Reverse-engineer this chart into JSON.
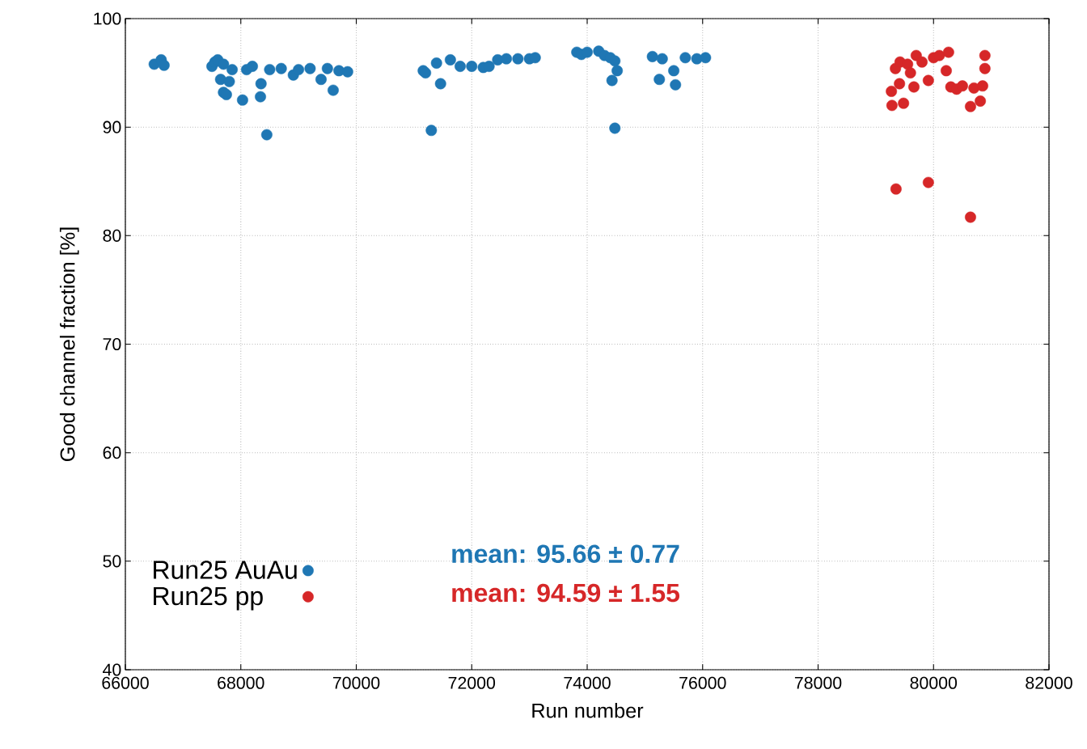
{
  "chart_data": {
    "type": "scatter",
    "xlabel": "Run number",
    "ylabel": "Good channel fraction [%]",
    "xlim": [
      66000,
      82000
    ],
    "xticks": [
      66000,
      68000,
      70000,
      72000,
      74000,
      76000,
      78000,
      80000,
      82000
    ],
    "ylim": [
      40,
      100
    ],
    "yticks": [
      40,
      50,
      60,
      70,
      80,
      90,
      100
    ],
    "grid": true,
    "legend": "bottom left",
    "marker": "circle",
    "annotations": [
      "mean: 95.66 ± 0.77",
      "mean: 94.59 ± 1.55"
    ],
    "series": [
      {
        "name": "Run25 AuAu",
        "color": "#1f77b4",
        "x": [
          66500,
          66620,
          66670,
          67500,
          67550,
          67600,
          67650,
          67700,
          67700,
          67750,
          67800,
          67850,
          68030,
          68100,
          68340,
          68350,
          68450,
          68200,
          68500,
          68700,
          68910,
          69000,
          69200,
          69390,
          69500,
          69600,
          69700,
          69850,
          71160,
          71200,
          71300,
          71390,
          71460,
          71630,
          71800,
          72000,
          72200,
          72300,
          72450,
          72600,
          72800,
          73000,
          73100,
          73820,
          73900,
          74000,
          74200,
          74300,
          74400,
          74480,
          74520,
          74430,
          74480,
          75130,
          75250,
          75300,
          75500,
          75530,
          75700,
          75900,
          76050
        ],
        "values": [
          95.8,
          96.2,
          95.7,
          95.6,
          96.0,
          96.2,
          94.4,
          95.8,
          93.2,
          93.0,
          94.2,
          95.3,
          92.5,
          95.3,
          92.8,
          94.0,
          89.3,
          95.6,
          95.3,
          95.4,
          94.8,
          95.3,
          95.4,
          94.4,
          95.4,
          93.4,
          95.2,
          95.1,
          95.2,
          95.0,
          89.7,
          95.9,
          94.0,
          96.2,
          95.6,
          95.6,
          95.5,
          95.6,
          96.2,
          96.3,
          96.3,
          96.3,
          96.4,
          96.9,
          96.7,
          96.9,
          97.0,
          96.6,
          96.4,
          96.1,
          95.2,
          94.3,
          89.9,
          96.5,
          94.4,
          96.3,
          95.2,
          93.9,
          96.4,
          96.3,
          96.4
        ]
      },
      {
        "name": "Run25 pp",
        "color": "#d62728",
        "x": [
          79270,
          79280,
          79340,
          79350,
          79410,
          79420,
          79480,
          79550,
          79600,
          79660,
          79700,
          79800,
          79910,
          79910,
          80000,
          80100,
          80220,
          80260,
          80300,
          80400,
          80500,
          80640,
          80640,
          80700,
          80810,
          80850,
          80890,
          80890
        ],
        "values": [
          93.3,
          92.0,
          95.4,
          84.3,
          94.0,
          96.0,
          92.2,
          95.8,
          95.0,
          93.7,
          96.6,
          96.0,
          94.3,
          84.9,
          96.4,
          96.6,
          95.2,
          96.9,
          93.7,
          93.5,
          93.8,
          91.9,
          81.7,
          93.6,
          92.4,
          93.8,
          96.6,
          95.4
        ]
      }
    ]
  }
}
